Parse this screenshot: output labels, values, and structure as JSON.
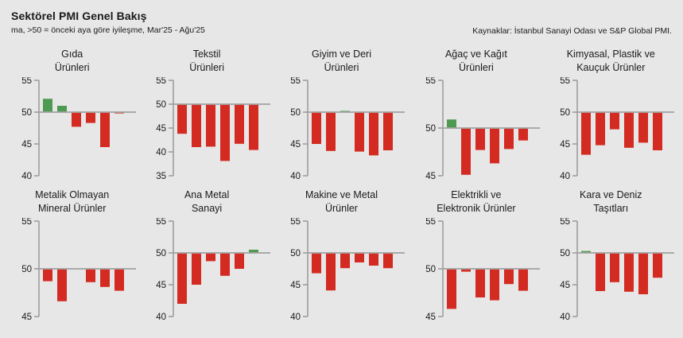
{
  "header": {
    "title": "Sektörel PMI Genel Bakış",
    "subtitle": "ma, >50 = önceki aya göre iyileşme, Mar'25 - Ağu'25",
    "source": "Kaynaklar: İstanbul Sanayi Odası ve S&P Global PMI."
  },
  "colors": {
    "positive": "#4d9b50",
    "negative": "#d32b22",
    "axis": "#999999",
    "baseline": "#a3a3a3",
    "background": "#e7e7e7",
    "text": "#1a1a1a"
  },
  "chart_data": [
    {
      "type": "bar",
      "title": "Gıda\nÜrünleri",
      "x_period": "Mar'25 - Ağu'25",
      "baseline": 50,
      "ylim": [
        40,
        55
      ],
      "yticks": [
        40,
        45,
        50,
        55
      ],
      "values": [
        52.1,
        51.0,
        47.7,
        48.3,
        44.5,
        49.8
      ]
    },
    {
      "type": "bar",
      "title": "Tekstil\nÜrünleri",
      "x_period": "Mar'25 - Ağu'25",
      "baseline": 50,
      "ylim": [
        35,
        55
      ],
      "yticks": [
        35,
        40,
        45,
        50,
        55
      ],
      "values": [
        43.8,
        41.0,
        41.1,
        38.1,
        41.7,
        40.4
      ]
    },
    {
      "type": "bar",
      "title": "Giyim ve Deri\nÜrünleri",
      "x_period": "Mar'25 - Ağu'25",
      "baseline": 50,
      "ylim": [
        40,
        55
      ],
      "yticks": [
        40,
        45,
        50,
        55
      ],
      "values": [
        45.0,
        43.9,
        50.2,
        43.8,
        43.2,
        44.0
      ]
    },
    {
      "type": "bar",
      "title": "Ağaç ve Kağıt\nÜrünleri",
      "x_period": "Mar'25 - Ağu'25",
      "baseline": 50,
      "ylim": [
        45,
        55
      ],
      "yticks": [
        45,
        50,
        55
      ],
      "values": [
        50.9,
        45.1,
        47.7,
        46.3,
        47.8,
        48.7
      ]
    },
    {
      "type": "bar",
      "title": "Kimyasal, Plastik ve\nKauçuk Ürünler",
      "x_period": "Mar'25 - Ağu'25",
      "baseline": 50,
      "ylim": [
        40,
        55
      ],
      "yticks": [
        40,
        45,
        50,
        55
      ],
      "values": [
        43.3,
        44.8,
        47.3,
        44.4,
        45.2,
        44.0
      ]
    },
    {
      "type": "bar",
      "title": "Metalik Olmayan\nMineral Ürünler",
      "x_period": "Mar'25 - Ağu'25",
      "baseline": 50,
      "ylim": [
        45,
        55
      ],
      "yticks": [
        45,
        50,
        55
      ],
      "values": [
        48.7,
        46.6,
        50.0,
        48.6,
        48.1,
        47.7
      ]
    },
    {
      "type": "bar",
      "title": "Ana Metal\nSanayi",
      "x_period": "Mar'25 - Ağu'25",
      "baseline": 50,
      "ylim": [
        40,
        55
      ],
      "yticks": [
        40,
        45,
        50,
        55
      ],
      "values": [
        42.0,
        45.0,
        48.7,
        46.4,
        47.5,
        50.5
      ]
    },
    {
      "type": "bar",
      "title": "Makine ve Metal\nÜrünler",
      "x_period": "Mar'25 - Ağu'25",
      "baseline": 50,
      "ylim": [
        40,
        55
      ],
      "yticks": [
        40,
        45,
        50,
        55
      ],
      "values": [
        46.8,
        44.1,
        47.6,
        48.5,
        48.0,
        47.6
      ]
    },
    {
      "type": "bar",
      "title": "Elektrikli ve\nElektronik Ürünler",
      "x_period": "Mar'25 - Ağu'25",
      "baseline": 50,
      "ylim": [
        45,
        55
      ],
      "yticks": [
        45,
        50,
        55
      ],
      "values": [
        45.8,
        49.7,
        47.0,
        46.7,
        48.4,
        47.7
      ]
    },
    {
      "type": "bar",
      "title": "Kara ve Deniz\nTaşıtları",
      "x_period": "Mar'25 - Ağu'25",
      "baseline": 50,
      "ylim": [
        40,
        55
      ],
      "yticks": [
        40,
        45,
        50,
        55
      ],
      "values": [
        50.3,
        44.0,
        45.4,
        43.9,
        43.5,
        46.1
      ]
    }
  ]
}
